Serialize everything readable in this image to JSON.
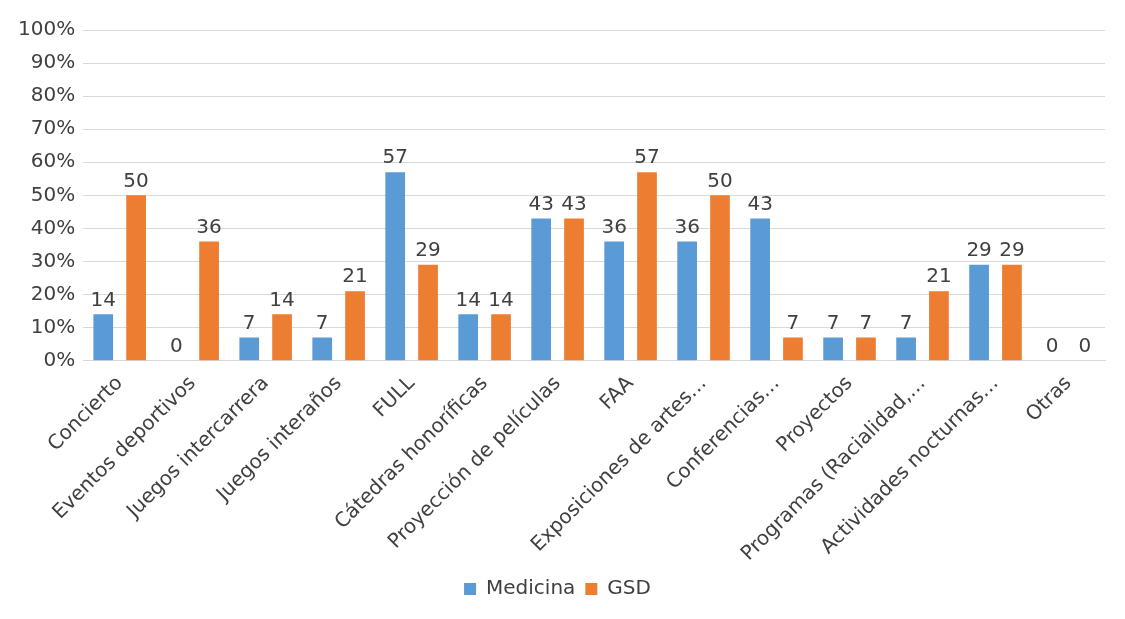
{
  "chart_data": {
    "type": "bar",
    "categories": [
      "Concierto",
      "Eventos deportivos",
      "Juegos intercarrera",
      "Juegos interaños",
      "FULL",
      "Cátedras honoríficas",
      "Proyección de películas",
      "FAA",
      "Exposiciones de artes…",
      "Conferencias…",
      "Proyectos",
      "Programas (Racialidad,…",
      "Actividades nocturnas…",
      "Otras"
    ],
    "series": [
      {
        "name": "Medicina",
        "color": "#5b9bd5",
        "values": [
          14,
          0,
          7,
          7,
          57,
          14,
          43,
          36,
          36,
          43,
          7,
          7,
          29,
          0
        ]
      },
      {
        "name": "GSD",
        "color": "#ed7d31",
        "values": [
          50,
          36,
          14,
          21,
          29,
          14,
          43,
          57,
          50,
          7,
          7,
          21,
          29,
          0
        ]
      }
    ],
    "ylim": [
      0,
      100
    ],
    "yticks": [
      {
        "value": 0,
        "label": "0%"
      },
      {
        "value": 10,
        "label": "10%"
      },
      {
        "value": 20,
        "label": "20%"
      },
      {
        "value": 30,
        "label": "30%"
      },
      {
        "value": 40,
        "label": "40%"
      },
      {
        "value": 50,
        "label": "50%"
      },
      {
        "value": 60,
        "label": "60%"
      },
      {
        "value": 70,
        "label": "70%"
      },
      {
        "value": 80,
        "label": "80%"
      },
      {
        "value": 90,
        "label": "90%"
      },
      {
        "value": 100,
        "label": "100%"
      }
    ],
    "grid": "y",
    "legend": "bottom",
    "data_labels": true
  }
}
